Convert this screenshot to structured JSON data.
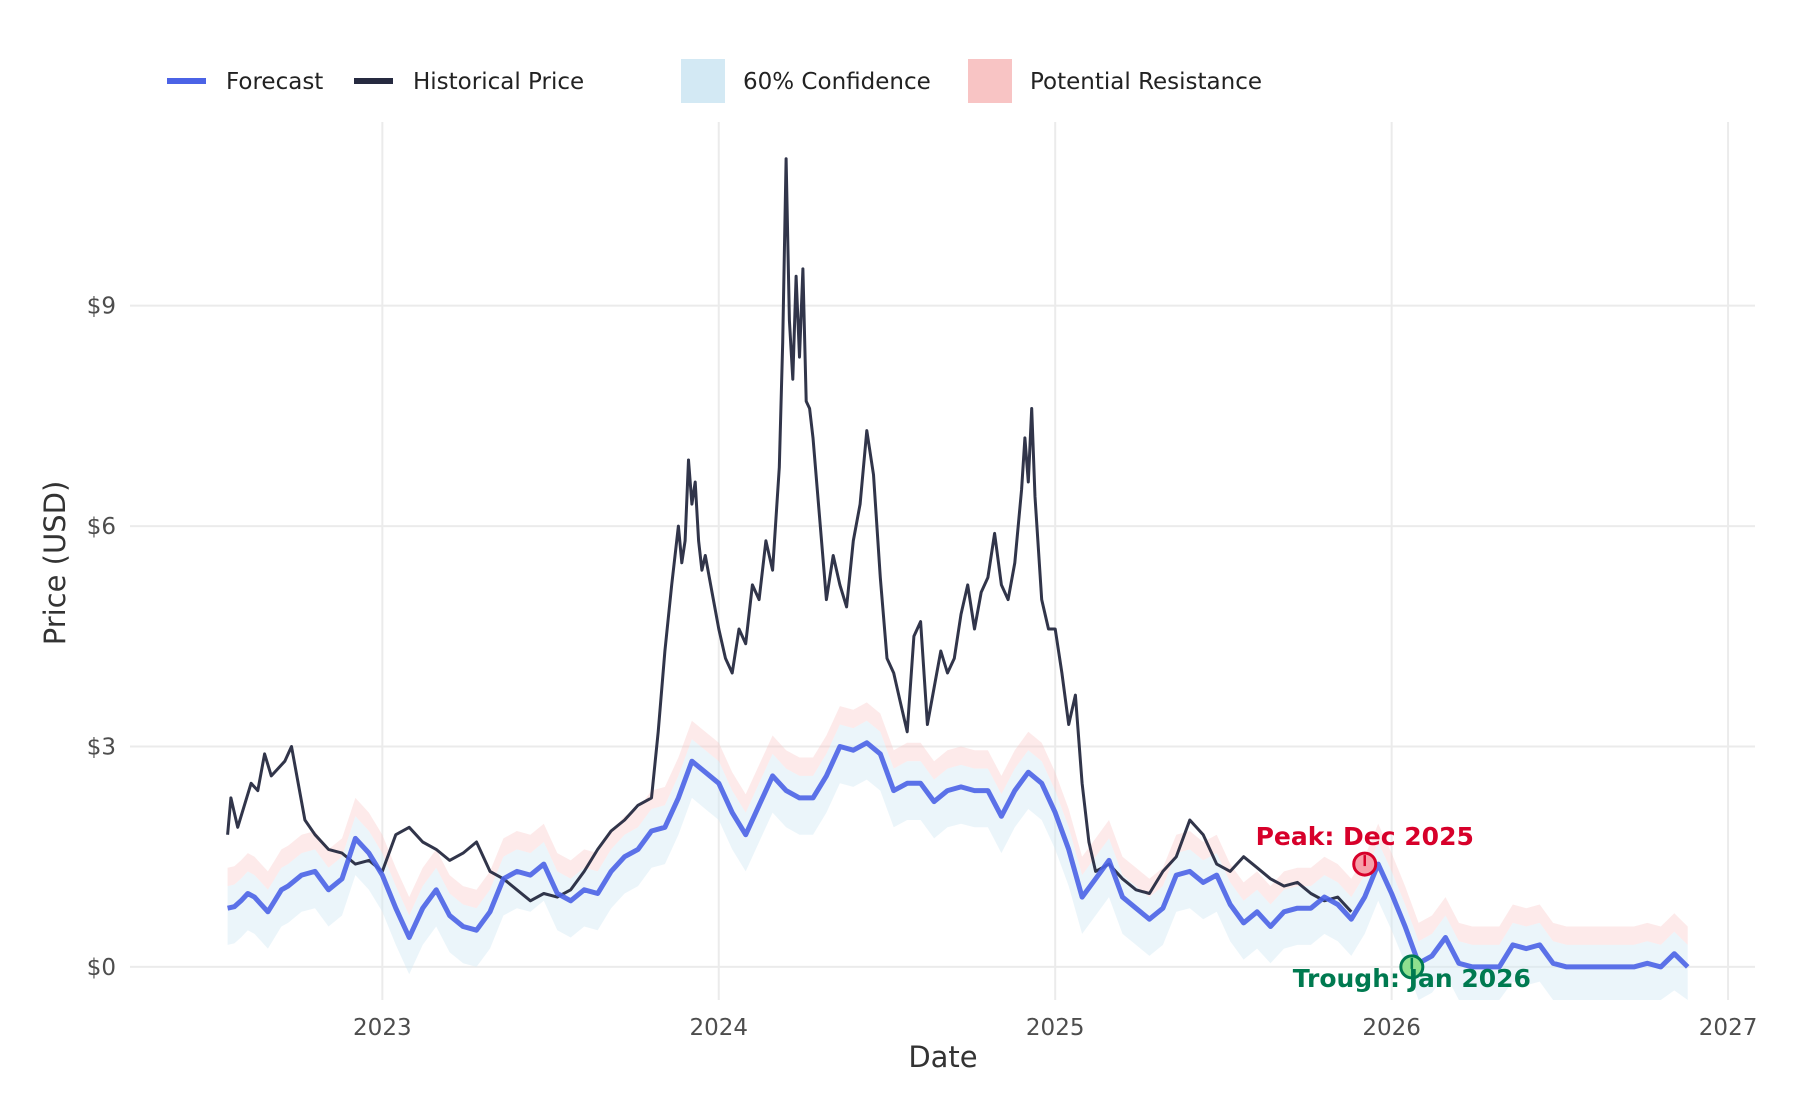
{
  "chart_data": {
    "type": "line",
    "title": "",
    "xlabel": "Date",
    "ylabel": "Price (USD)",
    "x_ticks": [
      "2023",
      "2024",
      "2025",
      "2026",
      "2027"
    ],
    "x_tick_values": [
      2023.0,
      2024.0,
      2025.0,
      2026.0,
      2027.0
    ],
    "xlim": [
      2022.25,
      2027.08
    ],
    "y_ticks": [
      "$0",
      "$3",
      "$6",
      "$9"
    ],
    "y_tick_values": [
      0,
      3,
      6,
      9
    ],
    "ylim": [
      -0.45,
      11.5
    ],
    "grid": true,
    "legend": {
      "placement": "top-left",
      "items": [
        {
          "label": "Forecast",
          "kind": "line",
          "color": "#4b63e6"
        },
        {
          "label": "Historical Price",
          "kind": "line",
          "color": "#262a40"
        },
        {
          "label": "60% Confidence",
          "kind": "area",
          "color": "#d3e9f4"
        },
        {
          "label": "Potential Resistance",
          "kind": "area",
          "color": "#f8c4c4"
        }
      ]
    },
    "colors": {
      "forecast": "#4b63e6",
      "historical": "#262a40",
      "confidence": "#d3e9f4",
      "resistance": "#f8c4c4",
      "peak": "#d7002a",
      "trough": "#007a50",
      "grid": "#ebebeb"
    },
    "series": [
      {
        "name": "Historical Price",
        "x": [
          2022.54,
          2022.55,
          2022.57,
          2022.59,
          2022.61,
          2022.63,
          2022.65,
          2022.67,
          2022.69,
          2022.71,
          2022.73,
          2022.75,
          2022.77,
          2022.8,
          2022.84,
          2022.88,
          2022.92,
          2022.96,
          2023.0,
          2023.04,
          2023.08,
          2023.12,
          2023.16,
          2023.2,
          2023.24,
          2023.28,
          2023.32,
          2023.36,
          2023.4,
          2023.44,
          2023.48,
          2023.52,
          2023.56,
          2023.6,
          2023.64,
          2023.68,
          2023.72,
          2023.76,
          2023.8,
          2023.82,
          2023.84,
          2023.86,
          2023.88,
          2023.89,
          2023.9,
          2023.91,
          2023.92,
          2023.93,
          2023.94,
          2023.95,
          2023.96,
          2023.98,
          2024.0,
          2024.02,
          2024.04,
          2024.06,
          2024.08,
          2024.1,
          2024.12,
          2024.14,
          2024.16,
          2024.18,
          2024.19,
          2024.2,
          2024.21,
          2024.22,
          2024.23,
          2024.24,
          2024.25,
          2024.26,
          2024.27,
          2024.28,
          2024.3,
          2024.32,
          2024.34,
          2024.36,
          2024.38,
          2024.4,
          2024.42,
          2024.44,
          2024.46,
          2024.48,
          2024.5,
          2024.52,
          2024.54,
          2024.56,
          2024.58,
          2024.6,
          2024.62,
          2024.64,
          2024.66,
          2024.68,
          2024.7,
          2024.72,
          2024.74,
          2024.76,
          2024.78,
          2024.8,
          2024.82,
          2024.84,
          2024.86,
          2024.88,
          2024.9,
          2024.91,
          2024.92,
          2024.93,
          2024.94,
          2024.96,
          2024.98,
          2025.0,
          2025.02,
          2025.04,
          2025.06,
          2025.08,
          2025.1,
          2025.12,
          2025.16,
          2025.2,
          2025.24,
          2025.28,
          2025.32,
          2025.36,
          2025.4,
          2025.44,
          2025.48,
          2025.52,
          2025.56,
          2025.6,
          2025.64,
          2025.68,
          2025.72,
          2025.76,
          2025.8,
          2025.84,
          2025.88
        ],
        "y": [
          1.8,
          2.3,
          1.9,
          2.2,
          2.5,
          2.4,
          2.9,
          2.6,
          2.7,
          2.8,
          3.0,
          2.5,
          2.0,
          1.8,
          1.6,
          1.55,
          1.4,
          1.45,
          1.3,
          1.8,
          1.9,
          1.7,
          1.6,
          1.45,
          1.55,
          1.7,
          1.3,
          1.2,
          1.05,
          0.9,
          1.0,
          0.95,
          1.05,
          1.3,
          1.6,
          1.85,
          2.0,
          2.2,
          2.3,
          3.2,
          4.3,
          5.2,
          6.0,
          5.5,
          5.8,
          6.9,
          6.3,
          6.6,
          5.8,
          5.4,
          5.6,
          5.1,
          4.6,
          4.2,
          4.0,
          4.6,
          4.4,
          5.2,
          5.0,
          5.8,
          5.4,
          6.8,
          8.5,
          11.0,
          8.8,
          8.0,
          9.4,
          8.3,
          9.5,
          7.7,
          7.6,
          7.2,
          6.1,
          5.0,
          5.6,
          5.2,
          4.9,
          5.8,
          6.3,
          7.3,
          6.7,
          5.3,
          4.2,
          4.0,
          3.6,
          3.2,
          4.5,
          4.7,
          3.3,
          3.8,
          4.3,
          4.0,
          4.2,
          4.8,
          5.2,
          4.6,
          5.1,
          5.3,
          5.9,
          5.2,
          5.0,
          5.5,
          6.5,
          7.2,
          6.6,
          7.6,
          6.4,
          5.0,
          4.6,
          4.6,
          4.0,
          3.3,
          3.7,
          2.5,
          1.7,
          1.3,
          1.4,
          1.2,
          1.05,
          1.0,
          1.3,
          1.5,
          2.0,
          1.8,
          1.4,
          1.3,
          1.5,
          1.35,
          1.2,
          1.1,
          1.15,
          1.0,
          0.9,
          0.95,
          0.75
        ]
      },
      {
        "name": "Forecast",
        "x": [
          2022.54,
          2022.56,
          2022.58,
          2022.6,
          2022.62,
          2022.64,
          2022.66,
          2022.68,
          2022.7,
          2022.72,
          2022.76,
          2022.8,
          2022.84,
          2022.88,
          2022.92,
          2022.96,
          2023.0,
          2023.04,
          2023.08,
          2023.12,
          2023.16,
          2023.2,
          2023.24,
          2023.28,
          2023.32,
          2023.36,
          2023.4,
          2023.44,
          2023.48,
          2023.52,
          2023.56,
          2023.6,
          2023.64,
          2023.68,
          2023.72,
          2023.76,
          2023.8,
          2023.84,
          2023.88,
          2023.92,
          2023.96,
          2024.0,
          2024.04,
          2024.08,
          2024.12,
          2024.16,
          2024.2,
          2024.24,
          2024.28,
          2024.32,
          2024.36,
          2024.4,
          2024.44,
          2024.48,
          2024.52,
          2024.56,
          2024.6,
          2024.64,
          2024.68,
          2024.72,
          2024.76,
          2024.8,
          2024.84,
          2024.88,
          2024.92,
          2024.96,
          2025.0,
          2025.04,
          2025.08,
          2025.12,
          2025.16,
          2025.2,
          2025.24,
          2025.28,
          2025.32,
          2025.36,
          2025.4,
          2025.44,
          2025.48,
          2025.52,
          2025.56,
          2025.6,
          2025.64,
          2025.68,
          2025.72,
          2025.76,
          2025.8,
          2025.84,
          2025.88,
          2025.92,
          2025.96,
          2026.0,
          2026.04,
          2026.08,
          2026.12,
          2026.16,
          2026.2,
          2026.24,
          2026.28,
          2026.32,
          2026.36,
          2026.4,
          2026.44,
          2026.48,
          2026.52,
          2026.56,
          2026.6,
          2026.64,
          2026.68,
          2026.72,
          2026.76,
          2026.8,
          2026.84,
          2026.88
        ],
        "y": [
          0.8,
          0.82,
          0.9,
          1.0,
          0.95,
          0.85,
          0.75,
          0.9,
          1.05,
          1.1,
          1.25,
          1.3,
          1.05,
          1.2,
          1.75,
          1.55,
          1.25,
          0.8,
          0.4,
          0.8,
          1.05,
          0.7,
          0.55,
          0.5,
          0.75,
          1.2,
          1.3,
          1.25,
          1.4,
          1.0,
          0.9,
          1.05,
          1.0,
          1.3,
          1.5,
          1.6,
          1.85,
          1.9,
          2.3,
          2.8,
          2.65,
          2.5,
          2.1,
          1.8,
          2.2,
          2.6,
          2.4,
          2.3,
          2.3,
          2.6,
          3.0,
          2.95,
          3.05,
          2.9,
          2.4,
          2.5,
          2.5,
          2.25,
          2.4,
          2.45,
          2.4,
          2.4,
          2.05,
          2.4,
          2.65,
          2.5,
          2.1,
          1.6,
          0.95,
          1.2,
          1.45,
          0.95,
          0.8,
          0.65,
          0.8,
          1.25,
          1.3,
          1.15,
          1.25,
          0.85,
          0.6,
          0.75,
          0.55,
          0.75,
          0.8,
          0.8,
          0.95,
          0.85,
          0.65,
          0.95,
          1.4,
          1.0,
          0.55,
          0.05,
          0.15,
          0.4,
          0.05,
          0.0,
          0.0,
          0.0,
          0.3,
          0.25,
          0.3,
          0.05,
          0.0,
          0.0,
          0.0,
          0.0,
          0.0,
          0.0,
          0.05,
          0.0,
          0.18,
          0.0
        ]
      }
    ],
    "confidence_band": {
      "label": "60% Confidence",
      "lower_offset": -0.5,
      "upper_offset": 0.3
    },
    "resistance_band": {
      "label": "Potential Resistance",
      "lower_offset": 0.3,
      "upper_offset": 0.55
    },
    "annotations": [
      {
        "text": "Peak: Dec 2025",
        "x": 2025.92,
        "y": 1.4,
        "color": "#d7002a",
        "label_position": "above"
      },
      {
        "text": "Trough: Jan 2026",
        "x": 2026.06,
        "y": 0.0,
        "color": "#007a50",
        "label_position": "below"
      }
    ]
  }
}
